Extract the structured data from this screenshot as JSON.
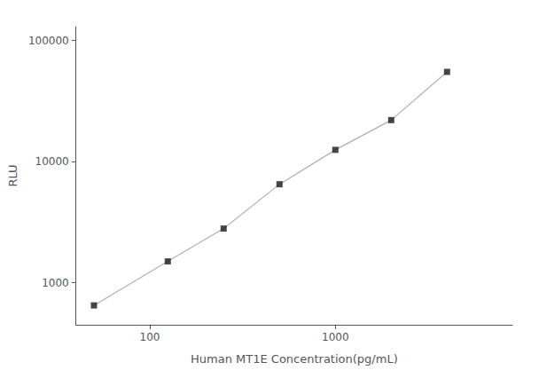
{
  "chart_data": {
    "type": "line",
    "x": [
      50,
      125,
      250,
      500,
      1000,
      2000,
      4000
    ],
    "series": [
      {
        "type": "line",
        "color": "#b0b0b0",
        "values": [
          650,
          1500,
          2800,
          6500,
          12500,
          22000,
          55000
        ]
      },
      {
        "type": "scatter",
        "color": "#1a1a1a",
        "marker": "square",
        "values": [
          650,
          1500,
          2800,
          6500,
          12500,
          22000,
          55000
        ]
      }
    ],
    "xlabel": "Human MT1E Concentration(pg/mL)",
    "ylabel": "RLU",
    "log": true,
    "xlim": [
      40,
      9000
    ],
    "ylim": [
      450,
      130000
    ],
    "xticks": [
      100,
      1000
    ],
    "yticks": [
      1000,
      10000,
      100000
    ],
    "grid": false,
    "background_color": "#ffffff"
  }
}
